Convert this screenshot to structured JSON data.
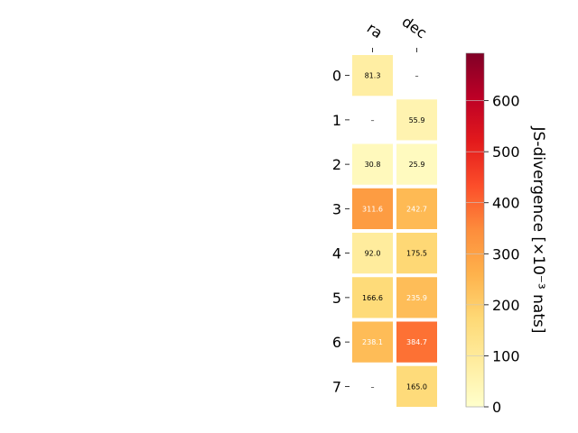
{
  "chart_data": {
    "type": "heatmap",
    "columns": [
      "ra",
      "dec"
    ],
    "rows": [
      "0",
      "1",
      "2",
      "3",
      "4",
      "5",
      "6",
      "7"
    ],
    "values": [
      [
        81.3,
        null
      ],
      [
        null,
        55.9
      ],
      [
        30.8,
        25.9
      ],
      [
        311.6,
        242.7
      ],
      [
        92.0,
        175.5
      ],
      [
        166.6,
        235.9
      ],
      [
        238.1,
        384.7
      ],
      [
        null,
        165.0
      ]
    ],
    "labels": [
      [
        "81.3",
        "–"
      ],
      [
        "–",
        "55.9"
      ],
      [
        "30.8",
        "25.9"
      ],
      [
        "311.6",
        "242.7"
      ],
      [
        "92.0",
        "175.5"
      ],
      [
        "166.6",
        "235.9"
      ],
      [
        "238.1",
        "384.7"
      ],
      [
        "–",
        "165.0"
      ]
    ],
    "colorbar": {
      "label": "JS-divergence [×10⁻³ nats]",
      "range": [
        0,
        693
      ],
      "ticks": [
        0,
        100,
        200,
        300,
        400,
        500,
        600
      ],
      "colormap": "YlOrRd"
    }
  }
}
